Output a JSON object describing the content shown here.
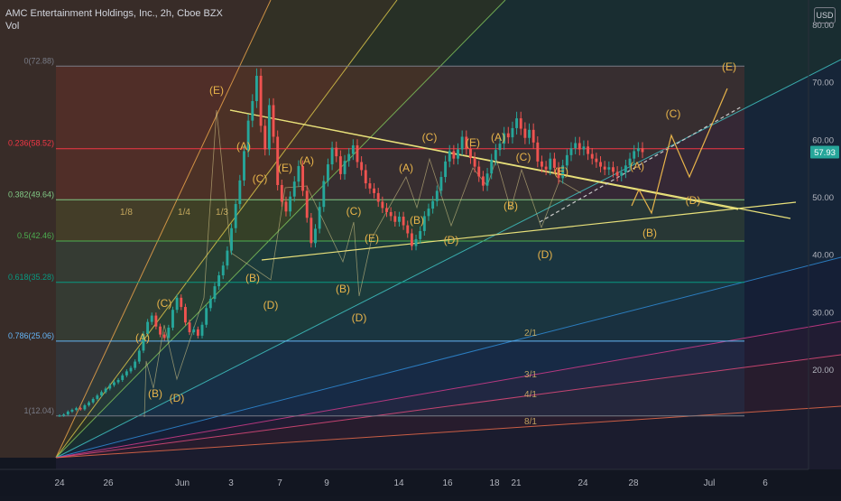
{
  "header": {
    "title": "AMC Entertainment Holdings, Inc., 2h, Cboe BZX",
    "indicator": "Vol",
    "currency_badge": "USD"
  },
  "chart_data": {
    "type": "candlestick",
    "title": "AMC Entertainment Holdings, Inc., 2h, Cboe BZX",
    "price_axis": {
      "ticks": [
        20,
        30,
        40,
        50,
        60,
        70,
        80
      ],
      "tick_labels": [
        "20.00",
        "30.00",
        "40.00",
        "50.00",
        "60.00",
        "70.00",
        "80.00"
      ],
      "ylim": [
        14.5,
        88.2
      ],
      "current_price": 57.93,
      "current_price_label": "57.93",
      "current_price_color": "#26a69a"
    },
    "time_axis": {
      "ticks": [
        "24",
        "26",
        "Jun",
        "3",
        "7",
        "9",
        "14",
        "16",
        "18",
        "21",
        "24",
        "28",
        "Jul",
        "6"
      ]
    },
    "fibonacci_retracement": {
      "levels": [
        {
          "ratio": "0",
          "price": 72.88,
          "label": "0(72.88)",
          "color": "#787b86"
        },
        {
          "ratio": "0.236",
          "price": 58.52,
          "label": "0.236(58.52)",
          "color": "#f23645"
        },
        {
          "ratio": "0.382",
          "price": 49.64,
          "label": "0.382(49.64)",
          "color": "#81c784"
        },
        {
          "ratio": "0.5",
          "price": 42.46,
          "label": "0.5(42.46)",
          "color": "#4caf50"
        },
        {
          "ratio": "0.618",
          "price": 35.28,
          "label": "0.618(35.28)",
          "color": "#089981"
        },
        {
          "ratio": "0.786",
          "price": 25.06,
          "label": "0.786(25.06)",
          "color": "#64b5f6"
        },
        {
          "ratio": "1",
          "price": 12.04,
          "label": "1(12.04)",
          "color": "#787b86"
        }
      ]
    },
    "gann_fan": {
      "labels": [
        "1/8",
        "1/4",
        "1/3",
        "2/1",
        "3/1",
        "4/1",
        "8/1"
      ]
    },
    "elliott_wave_labels": [
      "(A)",
      "(B)",
      "(C)",
      "(D)",
      "(E)"
    ],
    "candles": [
      {
        "price": 12.1
      },
      {
        "price": 12.3
      },
      {
        "price": 12.8
      },
      {
        "price": 13.1
      },
      {
        "price": 13.4
      },
      {
        "price": 13.2
      },
      {
        "price": 13.9
      },
      {
        "price": 14.4
      },
      {
        "price": 15.0
      },
      {
        "price": 15.6
      },
      {
        "price": 16.2
      },
      {
        "price": 16.8
      },
      {
        "price": 17.4
      },
      {
        "price": 17.9
      },
      {
        "price": 18.3
      },
      {
        "price": 19.1
      },
      {
        "price": 19.8
      },
      {
        "price": 20.4
      },
      {
        "price": 21.5
      },
      {
        "price": 23.4
      },
      {
        "price": 26.3
      },
      {
        "price": 28.4
      },
      {
        "price": 29.5
      },
      {
        "price": 27.6
      },
      {
        "price": 26.2
      },
      {
        "price": 25.6
      },
      {
        "price": 27.4
      },
      {
        "price": 30.5
      },
      {
        "price": 32.6
      },
      {
        "price": 31.0
      },
      {
        "price": 28.3
      },
      {
        "price": 26.6
      },
      {
        "price": 27.1
      },
      {
        "price": 26.0
      },
      {
        "price": 27.9
      },
      {
        "price": 30.8
      },
      {
        "price": 32.4
      },
      {
        "price": 34.6
      },
      {
        "price": 36.5
      },
      {
        "price": 38.2
      },
      {
        "price": 40.8
      },
      {
        "price": 44.7
      },
      {
        "price": 48.9
      },
      {
        "price": 53.0
      },
      {
        "price": 58.1
      },
      {
        "price": 63.4
      },
      {
        "price": 66.8
      },
      {
        "price": 71.2
      },
      {
        "price": 62.5
      },
      {
        "price": 58.4
      },
      {
        "price": 66.1
      },
      {
        "price": 60.6
      },
      {
        "price": 52.2
      },
      {
        "price": 49.3
      },
      {
        "price": 47.6
      },
      {
        "price": 50.2
      },
      {
        "price": 52.8
      },
      {
        "price": 55.5
      },
      {
        "price": 51.2
      },
      {
        "price": 46.5
      },
      {
        "price": 42.1
      },
      {
        "price": 44.6
      },
      {
        "price": 48.4
      },
      {
        "price": 52.9
      },
      {
        "price": 55.8
      },
      {
        "price": 58.7
      },
      {
        "price": 57.2
      },
      {
        "price": 54.1
      },
      {
        "price": 56.4
      },
      {
        "price": 57.6
      },
      {
        "price": 59.1
      },
      {
        "price": 56.2
      },
      {
        "price": 54.8
      },
      {
        "price": 52.5
      },
      {
        "price": 51.6
      },
      {
        "price": 50.8
      },
      {
        "price": 49.3
      },
      {
        "price": 48.2
      },
      {
        "price": 47.5
      },
      {
        "price": 46.8
      },
      {
        "price": 45.8
      },
      {
        "price": 46.7
      },
      {
        "price": 45.2
      },
      {
        "price": 43.8
      },
      {
        "price": 41.6
      },
      {
        "price": 42.8
      },
      {
        "price": 44.2
      },
      {
        "price": 46.8
      },
      {
        "price": 48.1
      },
      {
        "price": 49.4
      },
      {
        "price": 51.2
      },
      {
        "price": 53.6
      },
      {
        "price": 56.3
      },
      {
        "price": 58.1
      },
      {
        "price": 56.8
      },
      {
        "price": 58.4
      },
      {
        "price": 60.6
      },
      {
        "price": 58.5
      },
      {
        "price": 56.9
      },
      {
        "price": 55.4
      },
      {
        "price": 53.7
      },
      {
        "price": 52.1
      },
      {
        "price": 54.2
      },
      {
        "price": 56.6
      },
      {
        "price": 58.3
      },
      {
        "price": 59.4
      },
      {
        "price": 61.2
      },
      {
        "price": 60.5
      },
      {
        "price": 62.1
      },
      {
        "price": 63.8
      },
      {
        "price": 62.0
      },
      {
        "price": 60.4
      },
      {
        "price": 61.8
      },
      {
        "price": 59.6
      },
      {
        "price": 56.3
      },
      {
        "price": 55.4
      },
      {
        "price": 54.9
      },
      {
        "price": 56.8
      },
      {
        "price": 55.2
      },
      {
        "price": 53.4
      },
      {
        "price": 55.6
      },
      {
        "price": 57.4
      },
      {
        "price": 58.6
      },
      {
        "price": 59.5
      },
      {
        "price": 58.4
      },
      {
        "price": 58.9
      },
      {
        "price": 57.6
      },
      {
        "price": 56.8
      },
      {
        "price": 56.2
      },
      {
        "price": 55.4
      },
      {
        "price": 54.9
      },
      {
        "price": 55.3
      },
      {
        "price": 54.5
      },
      {
        "price": 53.8
      },
      {
        "price": 54.4
      },
      {
        "price": 55.6
      },
      {
        "price": 56.8
      },
      {
        "price": 58.1
      },
      {
        "price": 58.6
      },
      {
        "price": 57.93
      }
    ]
  }
}
